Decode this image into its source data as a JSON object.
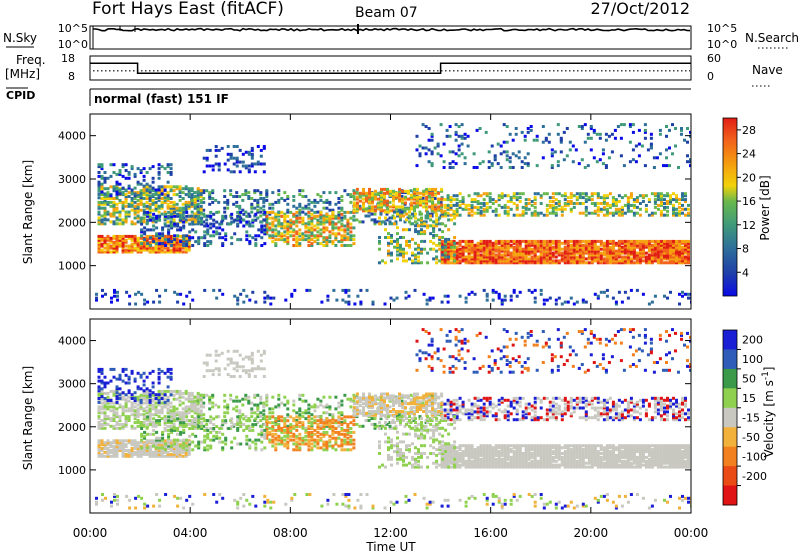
{
  "header": {
    "title": "Fort Hays East (fitACF)",
    "beam": "Beam 07",
    "date": "27/Oct/2012"
  },
  "chart_data": [
    {
      "type": "line",
      "id": "noise-panel",
      "left_label": "N.Sky",
      "left_ticks": [
        "10^5",
        "10^0"
      ],
      "right_label": "N.Search",
      "right_ticks": [
        "10^5",
        "10^0"
      ],
      "ylim_log10": [
        0,
        5
      ],
      "series": [
        {
          "role": "sky",
          "style": "dotted",
          "level_log10": 4.1
        },
        {
          "role": "search",
          "style": "solid",
          "level_log10": 4.2
        }
      ]
    },
    {
      "type": "line",
      "id": "freq-panel",
      "left_label": "Freq.",
      "left_unit": "[MHz]",
      "left_ticks": [
        18,
        8
      ],
      "right_label": "Nave",
      "right_ticks": [
        60,
        0
      ],
      "left_ylim": [
        8,
        18
      ],
      "right_ylim": [
        0,
        60
      ],
      "series": [
        {
          "role": "freq",
          "style": "solid",
          "x": [
            0,
            1.9,
            1.9,
            14.0,
            14.0,
            24
          ],
          "y": [
            15,
            15,
            10.8,
            10.8,
            15,
            15
          ]
        },
        {
          "role": "nave",
          "style": "dotted",
          "x": [
            0,
            24
          ],
          "y": [
            23,
            23
          ]
        }
      ]
    },
    {
      "type": "heatmap",
      "id": "cpid-bar",
      "label": "CPID",
      "mode_text": "normal (fast) 151 IF"
    },
    {
      "type": "heatmap",
      "id": "power-panel",
      "xlim": [
        0,
        24
      ],
      "ylim": [
        0,
        4500
      ],
      "ylabel": "Slant Range [km]",
      "yticks": [
        1000,
        2000,
        3000,
        4000
      ],
      "colorbar": {
        "label": "Power [dB]",
        "ticks": [
          4,
          8,
          12,
          16,
          20,
          24,
          28
        ],
        "range": [
          0,
          30
        ],
        "colors": [
          "#0a0ae6",
          "#1f3fa8",
          "#2e6f9a",
          "#3f9a7a",
          "#68b84d",
          "#f2d20a",
          "#f5a30f",
          "#f2641a",
          "#e11e14"
        ]
      }
    },
    {
      "type": "heatmap",
      "id": "velocity-panel",
      "xlim": [
        0,
        24
      ],
      "ylim": [
        0,
        4500
      ],
      "ylabel": "Slant Range [km]",
      "yticks": [
        1000,
        2000,
        3000,
        4000
      ],
      "colorbar": {
        "label": "Velocity [m s^-1]",
        "ticks": [
          "200",
          "100",
          "50",
          "15",
          "-15",
          "-50",
          "-100",
          "-200"
        ],
        "colors": [
          "#1a1fd6",
          "#2e5cb8",
          "#3a9a4a",
          "#8fd14f",
          "#c8c8c0",
          "#f2b13a",
          "#f2801e",
          "#ea4a14",
          "#e01414"
        ]
      }
    }
  ],
  "xaxis": {
    "label": "Time UT",
    "ticks": [
      "00:00",
      "04:00",
      "08:00",
      "12:00",
      "16:00",
      "20:00",
      "00:00"
    ]
  }
}
